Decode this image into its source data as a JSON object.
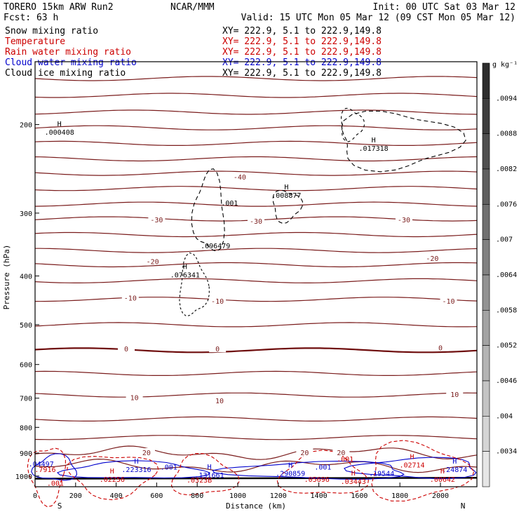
{
  "chart_data": {
    "type": "cross-section",
    "header": {
      "model": "TORERO  15km ARW    Run2",
      "org": "NCAR/MMM",
      "init": "Init: 00 UTC Sat 03 Mar 12",
      "fcst": "Fcst:    63 h",
      "valid": "Valid: 15 UTC Mon 05 Mar 12 (09 CST Mon 05 Mar 12)"
    },
    "fields": [
      {
        "name": "Snow mixing ratio",
        "xy": "",
        "color": "#000000"
      },
      {
        "name": "Temperature",
        "xy": "XY= 222.9,   5.1 to 222.9,149.8",
        "color": "#cc0000"
      },
      {
        "name": "Rain water mixing ratio",
        "xy": "XY= 222.9,   5.1 to 222.9,149.8",
        "color": "#cc0000"
      },
      {
        "name": "Cloud water mixing ratio",
        "xy": "XY= 222.9,   5.1 to 222.9,149.8",
        "color": "#0000cc"
      },
      {
        "name": "Cloud ice mixing ratio",
        "xy": "XY= 222.9,   5.1 to 222.9,149.8",
        "color": "#000000"
      }
    ],
    "first_xy": "XY= 222.9,   5.1 to 222.9,149.8",
    "x_axis": {
      "label": "Distance (km)",
      "min": 0,
      "max": 2180,
      "ticks": [
        0,
        200,
        400,
        600,
        800,
        1000,
        1200,
        1400,
        1600,
        1800,
        2000
      ],
      "left_end": "S",
      "right_end": "N"
    },
    "y_axis": {
      "label": "Pressure (hPa)",
      "min": 150,
      "max": 1050,
      "scale": "log",
      "ticks": [
        200,
        300,
        400,
        500,
        600,
        700,
        800,
        900,
        1000
      ]
    },
    "colorbar": {
      "unit": "g kg⁻¹",
      "labels": [
        ".0094",
        ".0088",
        ".0082",
        ".0076",
        ".007",
        ".0064",
        ".0058",
        ".0052",
        ".0046",
        ".004",
        ".0034"
      ]
    },
    "isotherms": [
      {
        "p0": 162
      },
      {
        "p0": 175
      },
      {
        "p0": 189
      },
      {
        "p0": 203
      },
      {
        "p0": 218
      },
      {
        "p0": 234
      },
      {
        "p0": 250,
        "label": "-40"
      },
      {
        "p0": 268
      },
      {
        "p0": 288
      },
      {
        "p0": 308,
        "label": "-30"
      },
      {
        "p0": 331
      },
      {
        "p0": 356
      },
      {
        "p0": 380,
        "label": "-20"
      },
      {
        "p0": 409
      },
      {
        "p0": 445,
        "label": "-10"
      },
      {
        "p0": 500
      },
      {
        "p0": 562,
        "label": "0",
        "bold": true
      },
      {
        "p0": 625
      },
      {
        "p0": 690,
        "label": "10"
      },
      {
        "p0": 770
      },
      {
        "p0": 838
      },
      {
        "p0": 900,
        "label": "20"
      },
      {
        "p0": 955
      }
    ],
    "temp_labels": [
      {
        "x": 1010,
        "p": 255,
        "text": "-40"
      },
      {
        "x": 600,
        "p": 310,
        "text": "-30"
      },
      {
        "x": 1090,
        "p": 312,
        "text": "-30"
      },
      {
        "x": 1820,
        "p": 310,
        "text": "-30"
      },
      {
        "x": 580,
        "p": 375,
        "text": "-20"
      },
      {
        "x": 1960,
        "p": 370,
        "text": "-20"
      },
      {
        "x": 470,
        "p": 443,
        "text": "-10"
      },
      {
        "x": 900,
        "p": 450,
        "text": "-10"
      },
      {
        "x": 2040,
        "p": 450,
        "text": "-10"
      },
      {
        "x": 450,
        "p": 560,
        "text": "0"
      },
      {
        "x": 900,
        "p": 560,
        "text": "0"
      },
      {
        "x": 2000,
        "p": 557,
        "text": "0"
      },
      {
        "x": 490,
        "p": 700,
        "text": "10"
      },
      {
        "x": 910,
        "p": 710,
        "text": "10"
      },
      {
        "x": 2070,
        "p": 690,
        "text": "10"
      },
      {
        "x": 550,
        "p": 900,
        "text": "20"
      },
      {
        "x": 1330,
        "p": 900,
        "text": "20"
      },
      {
        "x": 1510,
        "p": 900,
        "text": "20"
      }
    ],
    "extrema": [
      {
        "x": 120,
        "p": 208,
        "h": "H",
        "text": ".000408",
        "color": "#000000"
      },
      {
        "x": 1670,
        "p": 224,
        "h": "H",
        "text": ".017318",
        "color": "#000000"
      },
      {
        "x": 1240,
        "p": 278,
        "h": "H",
        "text": ".008877",
        "color": "#000000"
      },
      {
        "x": 960,
        "p": 288,
        "h": "",
        "text": ".001",
        "color": "#000000"
      },
      {
        "x": 890,
        "p": 350,
        "h": "",
        "text": ".096479",
        "color": "#000000"
      },
      {
        "x": 740,
        "p": 400,
        "h": "H",
        "text": ".076341",
        "color": "#000000"
      },
      {
        "x": 30,
        "p": 950,
        "h": "",
        "text": ".04497",
        "color": "#0000cc"
      },
      {
        "x": 50,
        "p": 975,
        "h": "",
        "text": ".7916",
        "color": "#cc0000"
      },
      {
        "x": 500,
        "p": 975,
        "h": "H",
        "text": ".223316",
        "color": "#0000cc"
      },
      {
        "x": 660,
        "p": 965,
        "h": "",
        "text": ".001",
        "color": "#0000cc"
      },
      {
        "x": 860,
        "p": 1000,
        "h": "H",
        "text": ".131661",
        "color": "#0000cc"
      },
      {
        "x": 380,
        "p": 1020,
        "h": "H",
        "text": ".02256",
        "color": "#cc0000"
      },
      {
        "x": 810,
        "p": 1023,
        "h": "",
        "text": ".0323B",
        "color": "#cc0000"
      },
      {
        "x": 100,
        "p": 1038,
        "h": "",
        "text": ".001",
        "color": "#cc0000"
      },
      {
        "x": 1260,
        "p": 993,
        "h": "H",
        "text": ".290859",
        "color": "#0000cc"
      },
      {
        "x": 1390,
        "p": 1020,
        "h": "",
        "text": ".05696",
        "color": "#cc0000"
      },
      {
        "x": 1420,
        "p": 965,
        "h": "",
        "text": ".001",
        "color": "#0000cc"
      },
      {
        "x": 1530,
        "p": 930,
        "h": "",
        "text": ".001",
        "color": "#cc0000"
      },
      {
        "x": 1570,
        "p": 1030,
        "h": "H",
        "text": ".03443",
        "color": "#cc0000"
      },
      {
        "x": 1710,
        "p": 993,
        "h": "",
        "text": ".19544",
        "color": "#0000cc"
      },
      {
        "x": 1860,
        "p": 955,
        "h": "H",
        "text": ".02714",
        "color": "#cc0000"
      },
      {
        "x": 2070,
        "p": 975,
        "h": "H",
        "text": ".24874",
        "color": "#0000cc"
      },
      {
        "x": 2010,
        "p": 1020,
        "h": "H",
        "text": ".00642",
        "color": "#cc0000"
      }
    ]
  }
}
